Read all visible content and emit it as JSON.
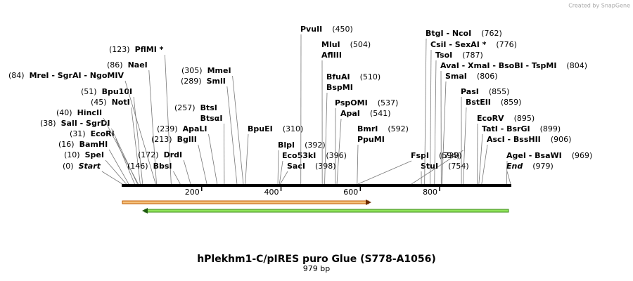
{
  "credit": "Created by SnapGene",
  "title": "hPlekhm1-C/pIRES puro Glue (S778-A1056)",
  "subtitle": "979 bp",
  "axis": {
    "length": 979,
    "ticks": [
      200,
      400,
      600,
      800
    ]
  },
  "enzymes": [
    {
      "names": [
        "Start"
      ],
      "position": 0,
      "position_label": "(0)"
    },
    {
      "names": [
        "SpeI"
      ],
      "position": 10,
      "position_label": "(10)"
    },
    {
      "names": [
        "BamHI"
      ],
      "position": 16,
      "position_label": "(16)"
    },
    {
      "names": [
        "EcoRI"
      ],
      "position": 31,
      "position_label": "(31)"
    },
    {
      "names": [
        "SalI - SgrDI"
      ],
      "position": 38,
      "position_label": "(38)"
    },
    {
      "names": [
        "HincII"
      ],
      "position": 40,
      "position_label": "(40)"
    },
    {
      "names": [
        "NotI"
      ],
      "position": 45,
      "position_label": "(45)"
    },
    {
      "names": [
        "Bpu10I"
      ],
      "position": 51,
      "position_label": "(51)"
    },
    {
      "names": [
        "MreI - SgrAI - NgoMIV"
      ],
      "position": 84,
      "position_label": "(84)"
    },
    {
      "names": [
        "NaeI"
      ],
      "position": 86,
      "position_label": "(86)"
    },
    {
      "names": [
        "PflMI *"
      ],
      "position": 123,
      "position_label": "(123)"
    },
    {
      "names": [
        "MmeI"
      ],
      "position": 305,
      "position_label": "(305)"
    },
    {
      "names": [
        "SmlI"
      ],
      "position": 289,
      "position_label": "(289)"
    },
    {
      "names": [
        "BbsI"
      ],
      "position": 146,
      "position_label": "(146)"
    },
    {
      "names": [
        "DrdI"
      ],
      "position": 172,
      "position_label": "(172)"
    },
    {
      "names": [
        "BglII"
      ],
      "position": 213,
      "position_label": "(213)"
    },
    {
      "names": [
        "ApaLI"
      ],
      "position": 239,
      "position_label": "(239)"
    },
    {
      "names": [
        "BtsI",
        "BtsαI"
      ],
      "position": 257,
      "position_label": "(257)"
    },
    {
      "names": [
        "BpuEI"
      ],
      "position": 310,
      "position_label": "(310)"
    },
    {
      "names": [
        "BlpI"
      ],
      "position": 392,
      "position_label": "(392)"
    },
    {
      "names": [
        "Eco53kI"
      ],
      "position": 396,
      "position_label": "(396)"
    },
    {
      "names": [
        "SacI"
      ],
      "position": 398,
      "position_label": "(398)"
    },
    {
      "names": [
        "PvuII"
      ],
      "position": 450,
      "position_label": "(450)"
    },
    {
      "names": [
        "MluI",
        "AflIII"
      ],
      "position": 504,
      "position_label": "(504)"
    },
    {
      "names": [
        "BfuAI",
        "BspMI"
      ],
      "position": 510,
      "position_label": "(510)"
    },
    {
      "names": [
        "PspOMI"
      ],
      "position": 537,
      "position_label": "(537)"
    },
    {
      "names": [
        "ApaI"
      ],
      "position": 541,
      "position_label": "(541)"
    },
    {
      "names": [
        "BmrI",
        "PpuMI"
      ],
      "position": 592,
      "position_label": "(592)"
    },
    {
      "names": [
        "FspI"
      ],
      "position": 594,
      "position_label": "(594)"
    },
    {
      "names": [],
      "position": 729,
      "position_label": "(729)"
    },
    {
      "names": [
        "StuI"
      ],
      "position": 754,
      "position_label": "(754)"
    },
    {
      "names": [
        "BtgI - NcoI"
      ],
      "position": 762,
      "position_label": "(762)"
    },
    {
      "names": [
        "CsiI - SexAI *"
      ],
      "position": 776,
      "position_label": "(776)"
    },
    {
      "names": [
        "TsoI"
      ],
      "position": 787,
      "position_label": "(787)"
    },
    {
      "names": [
        "AvaI - XmaI - BsoBI - TspMI"
      ],
      "position": 804,
      "position_label": "(804)"
    },
    {
      "names": [
        "SmaI"
      ],
      "position": 806,
      "position_label": "(806)"
    },
    {
      "names": [
        "PasI"
      ],
      "position": 855,
      "position_label": "(855)"
    },
    {
      "names": [
        "BstEII"
      ],
      "position": 859,
      "position_label": "(859)"
    },
    {
      "names": [
        "EcoRV"
      ],
      "position": 895,
      "position_label": "(895)"
    },
    {
      "names": [
        "TatI - BsrGI"
      ],
      "position": 899,
      "position_label": "(899)"
    },
    {
      "names": [
        "AscI - BssHII"
      ],
      "position": 906,
      "position_label": "(906)"
    },
    {
      "names": [
        "AgeI - BsaWI"
      ],
      "position": 969,
      "position_label": "(969)"
    },
    {
      "names": [
        "End"
      ],
      "position": 979,
      "position_label": "(979)"
    }
  ]
}
